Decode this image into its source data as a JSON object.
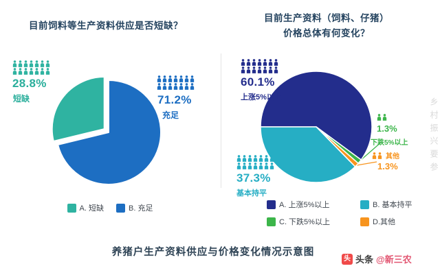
{
  "titles": {
    "left": "目前饲料等生产资料供应是否短缺？",
    "right": "目前生产资料（饲料、仔猪）\n价格总体有何变化？"
  },
  "caption": "养猪户生产资料供应与价格变化情况示意图",
  "watermarks": {
    "side_vertical": "乡村振兴要参",
    "brand_icon_glyph": "头",
    "brand_prefix": "头条",
    "brand_handle": "@新三农"
  },
  "chart_data": [
    {
      "type": "pie",
      "title": "目前饲料等生产资料供应是否短缺？",
      "legend_position": "bottom",
      "start_angle": 256.32,
      "slices": [
        {
          "legend": "A. 短缺",
          "label": "短缺",
          "pct": 28.8,
          "display": "28.8%",
          "color": "#2fb3a1",
          "exploded": true,
          "icon_count": 14
        },
        {
          "legend": "B. 充足",
          "label": "充足",
          "pct": 71.2,
          "display": "71.2%",
          "color": "#1d6ec2",
          "exploded": false,
          "icon_count": 14
        }
      ],
      "legend": [
        {
          "label": "A. 短缺",
          "color": "#2fb3a1"
        },
        {
          "label": "B. 充足",
          "color": "#1d6ec2"
        }
      ]
    },
    {
      "type": "pie",
      "title": "目前生产资料（饲料、仔猪）价格总体有何变化？",
      "legend_position": "bottom",
      "start_angle": -90,
      "slices": [
        {
          "legend": "A. 上涨5%以上",
          "label": "上涨5%以上",
          "pct": 60.1,
          "display": "60.1%",
          "color": "#232d8c",
          "exploded": false,
          "icon_count": 14
        },
        {
          "legend": "C. 下跌5%以上",
          "label": "下跌5%以上",
          "pct": 1.3,
          "display": "1.3%",
          "color": "#3cb54a",
          "exploded": false,
          "icon_count": 2
        },
        {
          "legend": "D.其他",
          "label": "其他",
          "pct": 1.3,
          "display": "1.3%",
          "color": "#f7941e",
          "exploded": false,
          "icon_count": 2
        },
        {
          "legend": "B. 基本持平",
          "label": "基本持平",
          "pct": 37.3,
          "display": "37.3%",
          "color": "#26aec4",
          "exploded": false,
          "icon_count": 14
        }
      ],
      "legend": [
        {
          "label": "A. 上涨5%以上",
          "color": "#232d8c"
        },
        {
          "label": "B. 基本持平",
          "color": "#26aec4"
        },
        {
          "label": "C. 下跌5%以上",
          "color": "#3cb54a"
        },
        {
          "label": "D.其他",
          "color": "#f7941e"
        }
      ]
    }
  ]
}
